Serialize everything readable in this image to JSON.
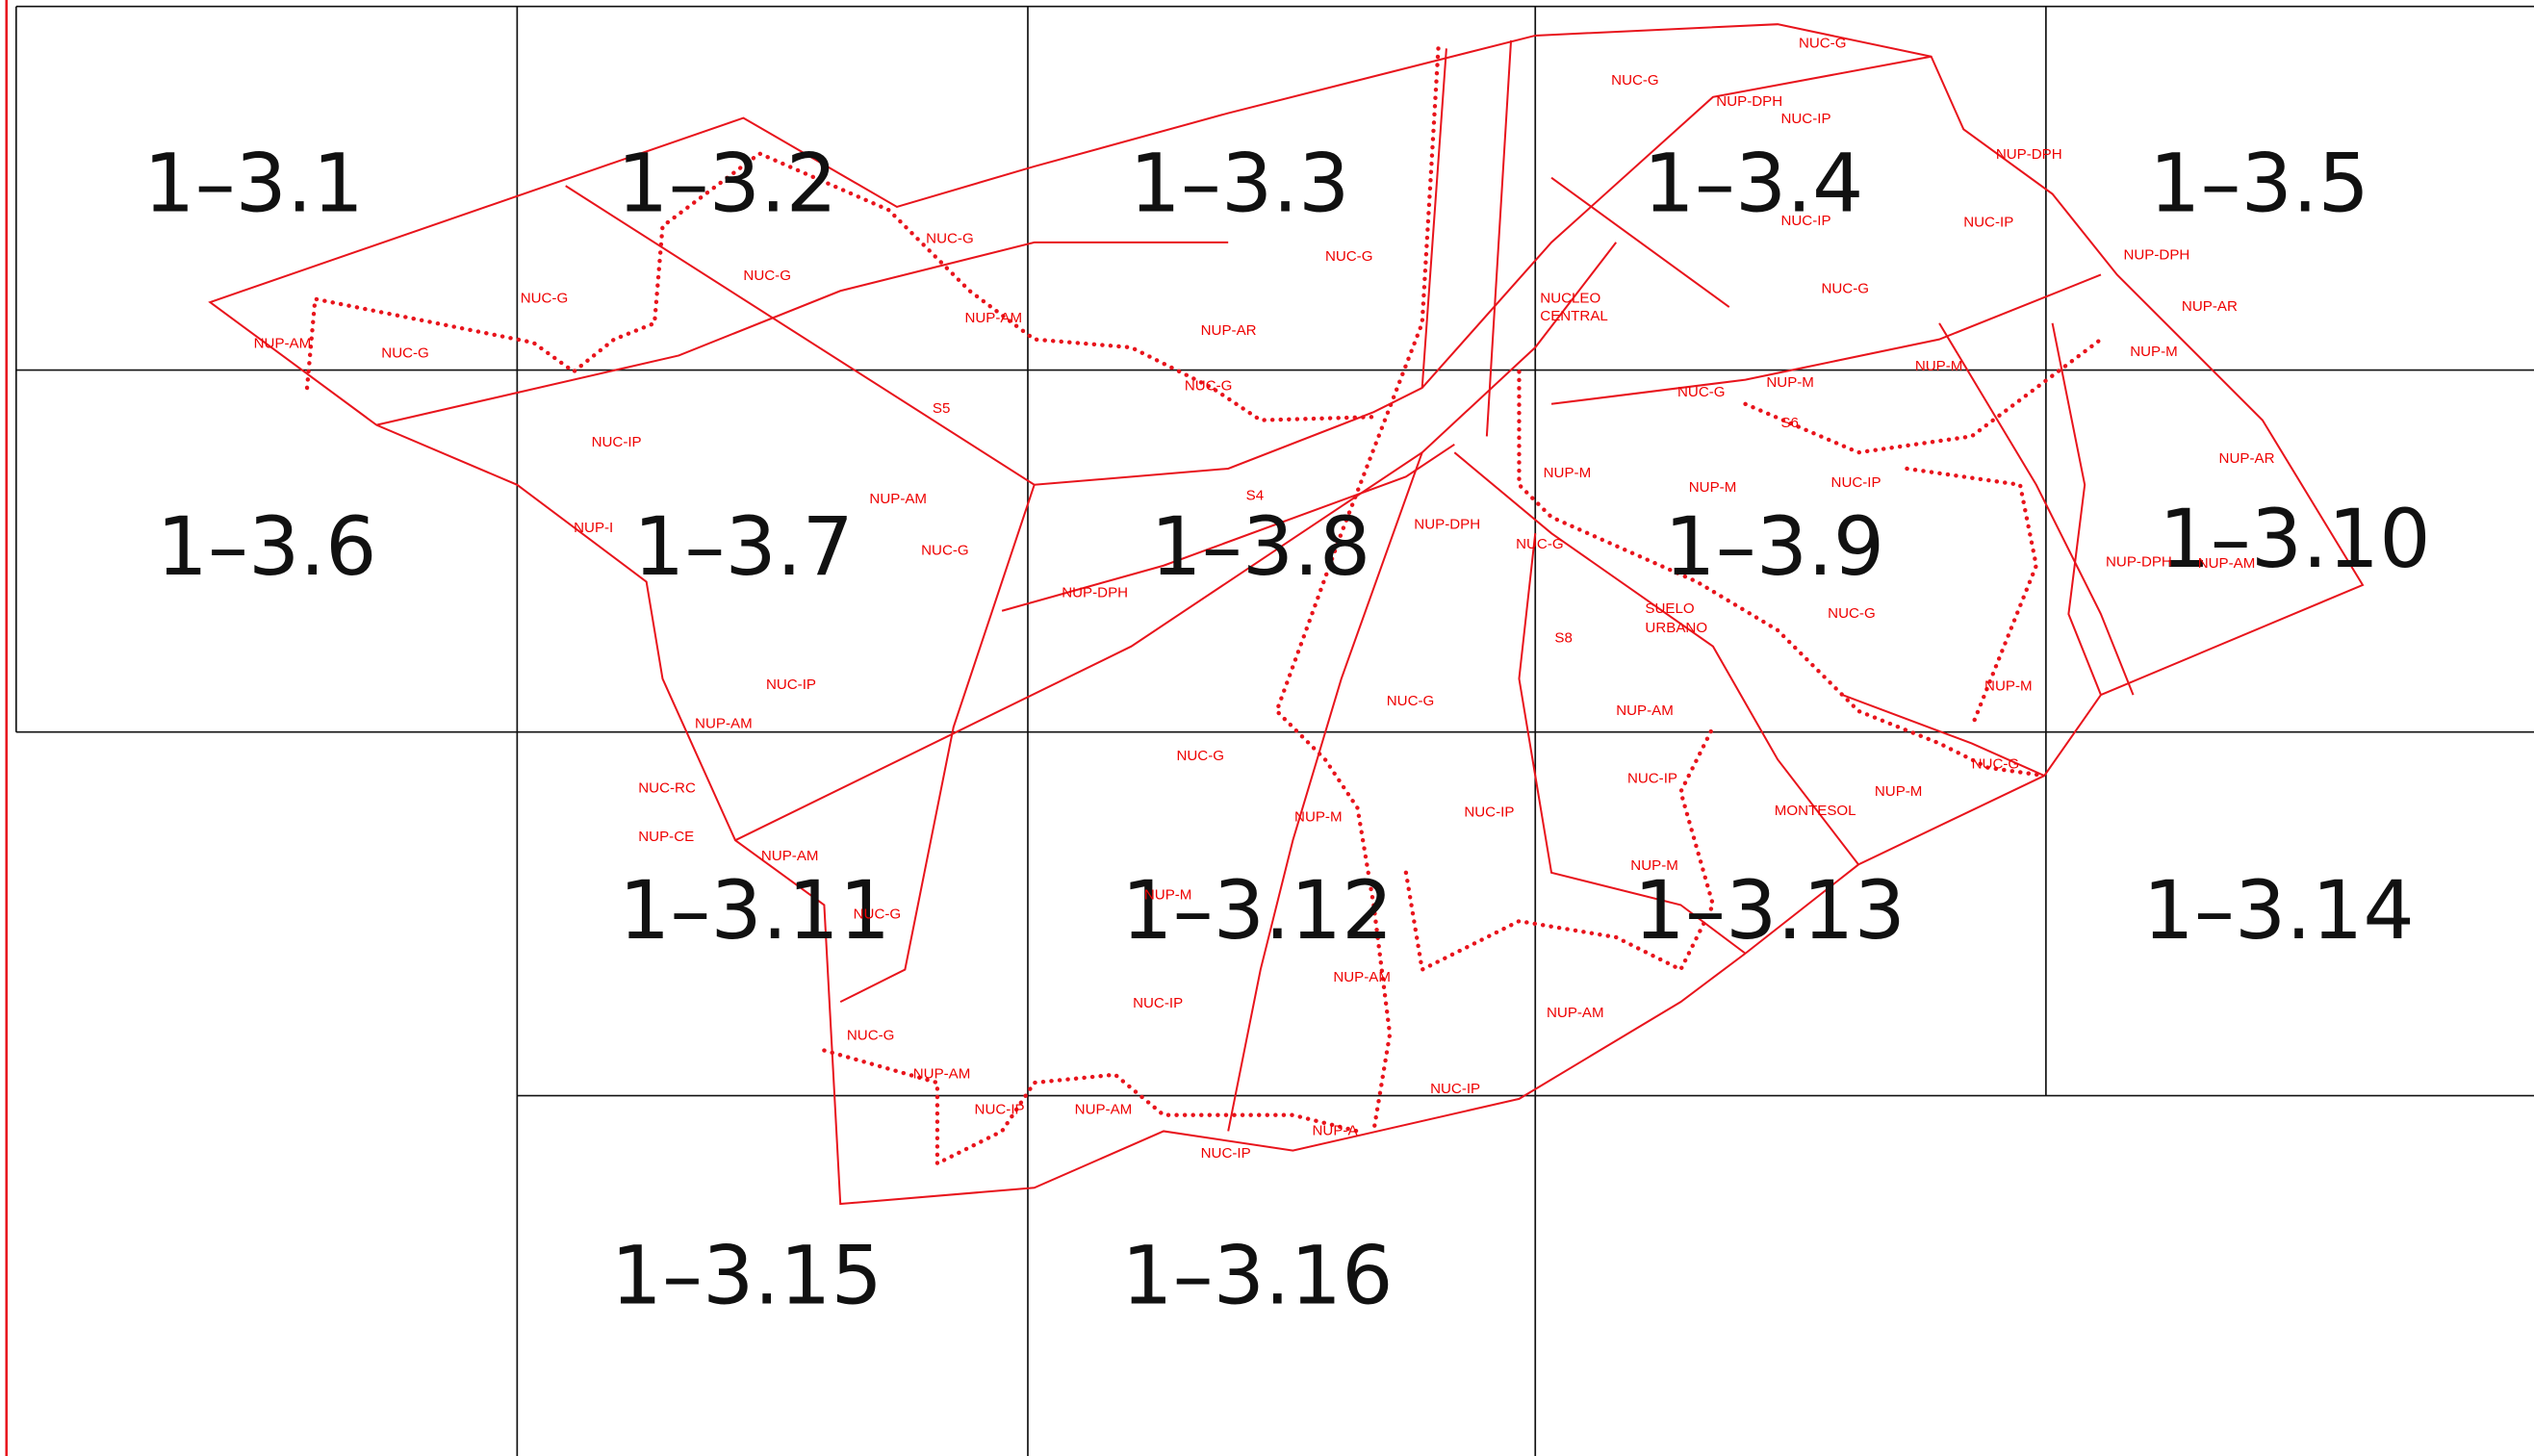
{
  "sheets": [
    "1–3.1",
    "1–3.2",
    "1–3.3",
    "1–3.4",
    "1–3.5",
    "1–3.6",
    "1–3.7",
    "1–3.8",
    "1–3.9",
    "1–3.10",
    "1–3.11",
    "1–3.12",
    "1–3.13",
    "1–3.14",
    "1–3.15",
    "1–3.16"
  ],
  "zones": [
    "NUC-G",
    "NUC-G",
    "NUP-DPH",
    "NUC-IP",
    "NUP-DPH",
    "NUC-IP",
    "NUC-IP",
    "NUP-DPH",
    "NUP-AR",
    "NUC-G",
    "NUP-M",
    "NUP-M",
    "NUP-M",
    "NUC-G",
    "S6",
    "NUC-IP",
    "NUP-AR",
    "NUP-M",
    "NUP-M",
    "NUP-DPH",
    "NUP-AM",
    "NUC-G",
    "NUC-G",
    "SUELO",
    "URBANO",
    "S8",
    "NUP-M",
    "NUP-AM",
    "NUC-G",
    "NUC-IP",
    "MONTESOL",
    "NUP-M",
    "NUP-M",
    "NUCLEO",
    "CENTRAL",
    "NUC-G",
    "NUC-G",
    "NUP-AM",
    "NUP-AR",
    "NUC-G",
    "NUC-G",
    "NUC-G",
    "NUP-AM",
    "NUC-G",
    "S5",
    "S4",
    "NUC-IP",
    "NUP-AM",
    "NUC-G",
    "NUP-I",
    "NUP-DPH",
    "NUP-DPH",
    "NUC-G",
    "NUC-IP",
    "NUP-AM",
    "NUC-G",
    "NUC-RC",
    "NUP-CE",
    "NUP-AM",
    "NUP-M",
    "NUC-IP",
    "NUP-M",
    "NUC-G",
    "NUP-AM",
    "NUC-IP",
    "NUP-AM",
    "NUC-G",
    "NUP-AM",
    "NUC-IP",
    "NUP-AM",
    "NUC-IP",
    "NUP-A",
    "NUC-IP"
  ]
}
